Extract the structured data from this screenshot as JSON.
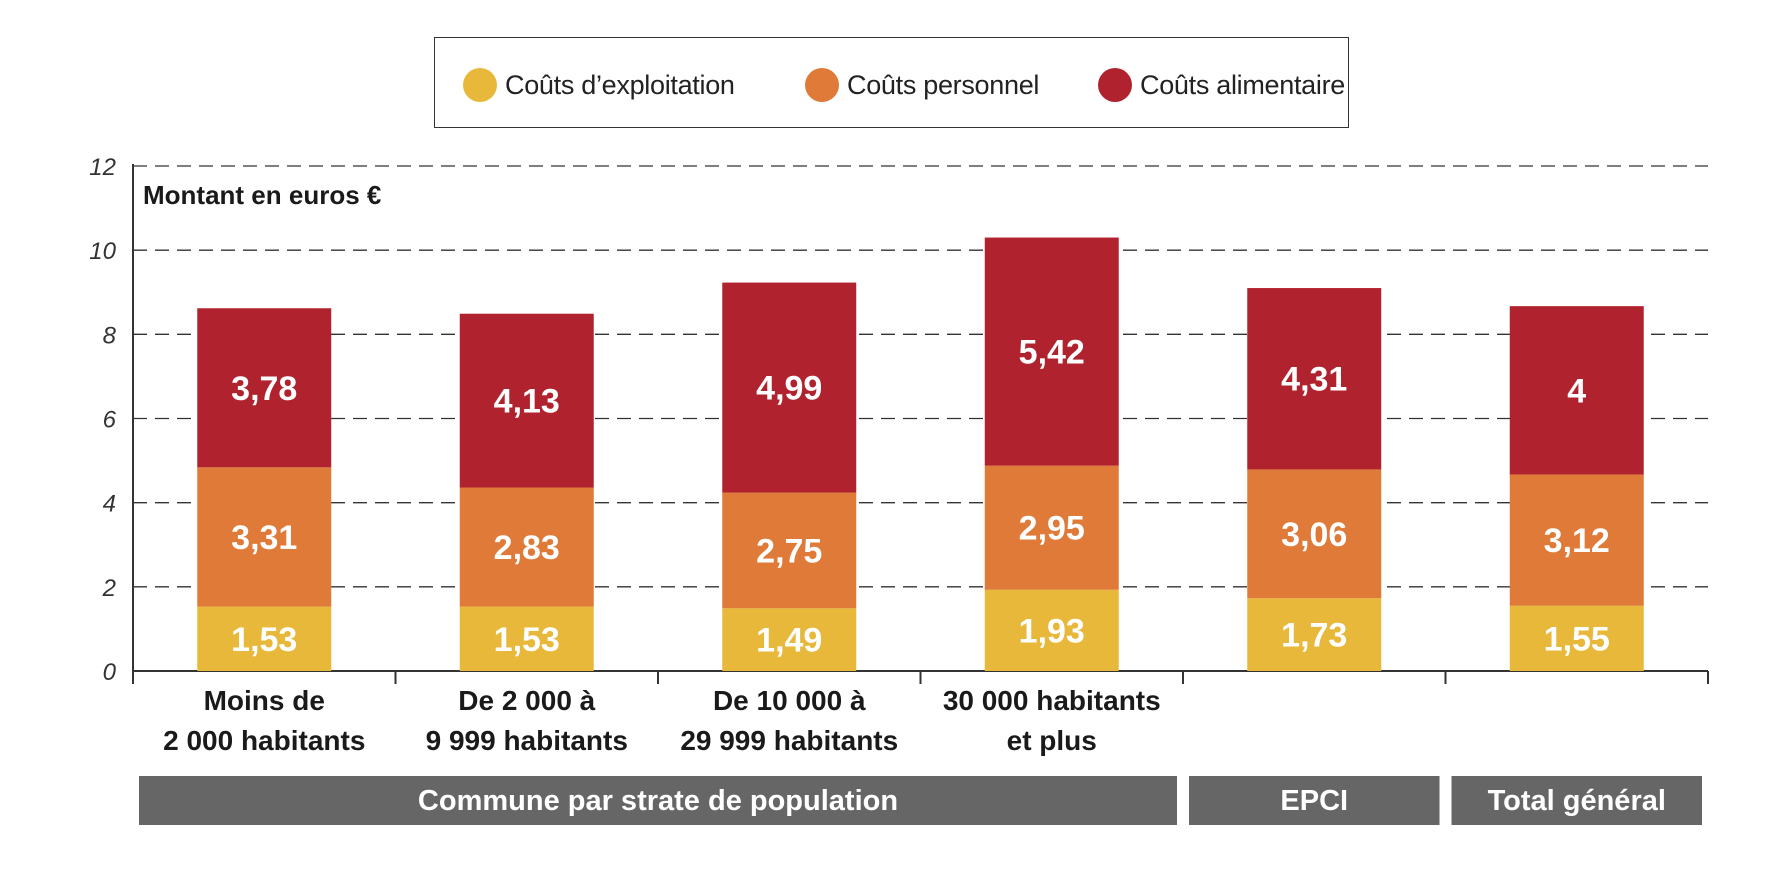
{
  "chart_data": {
    "type": "bar",
    "stacked": true,
    "ylabel": "Montant en euros €",
    "ylim": [
      0,
      12
    ],
    "yticks": [
      "0",
      "2",
      "4",
      "6",
      "8",
      "10",
      "12"
    ],
    "grid": "dashed horizontal",
    "categories": [
      [
        "Moins de",
        "2 000 habitants"
      ],
      [
        "De 2 000 à",
        "9 999 habitants"
      ],
      [
        "De 10 000 à",
        "29 999 habitants"
      ],
      [
        "30 000 habitants",
        "et plus"
      ],
      [
        "",
        ""
      ],
      [
        "",
        ""
      ]
    ],
    "series": [
      {
        "name": "Coûts d’exploitation",
        "color": "#e8b83a",
        "values": [
          1.53,
          1.53,
          1.49,
          1.93,
          1.73,
          1.55
        ],
        "labels": [
          "1,53",
          "1,53",
          "1,49",
          "1,93",
          "1,73",
          "1,55"
        ]
      },
      {
        "name": "Coûts personnel",
        "color": "#df7a39",
        "values": [
          3.31,
          2.83,
          2.75,
          2.95,
          3.06,
          3.12
        ],
        "labels": [
          "3,31",
          "2,83",
          "2,75",
          "2,95",
          "3,06",
          "3,12"
        ]
      },
      {
        "name": "Coûts alimentaire",
        "color": "#b0232e",
        "values": [
          3.78,
          4.13,
          4.99,
          5.42,
          4.31,
          4.0
        ],
        "labels": [
          "3,78",
          "4,13",
          "4,99",
          "5,42",
          "4,31",
          "4"
        ]
      }
    ],
    "groups": [
      {
        "label": "Commune par strate de population",
        "span": [
          0,
          3
        ]
      },
      {
        "label": "EPCI",
        "span": [
          4,
          4
        ]
      },
      {
        "label": "Total général",
        "span": [
          5,
          5
        ]
      }
    ],
    "group_color": "#666666",
    "legend_position": "top-center"
  }
}
